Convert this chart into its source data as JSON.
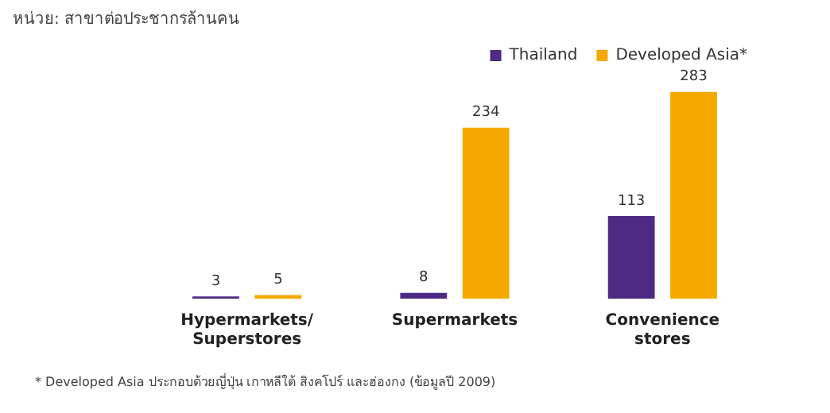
{
  "chart_data": {
    "type": "bar",
    "title": "หน่วย: สาขาต่อประชากรล้านคน",
    "categories": [
      "Hypermarkets/ Superstores",
      "Supermarkets",
      "Convenience stores"
    ],
    "series": [
      {
        "name": "Thailand",
        "color": "#4e2a84",
        "values": [
          3,
          8,
          113
        ]
      },
      {
        "name": "Developed Asia*",
        "color": "#f5a800",
        "values": [
          5,
          234,
          283
        ]
      }
    ],
    "data_labels": true,
    "legend": "top right",
    "grid": false,
    "tick_labels": "x",
    "annotations": [
      "* Developed  Asia ประกอบด้วยญี่ปุ่น เกาหลีใต้ สิงคโปร์ และฮ่องกง (ข้อมูลปี 2009)"
    ]
  }
}
